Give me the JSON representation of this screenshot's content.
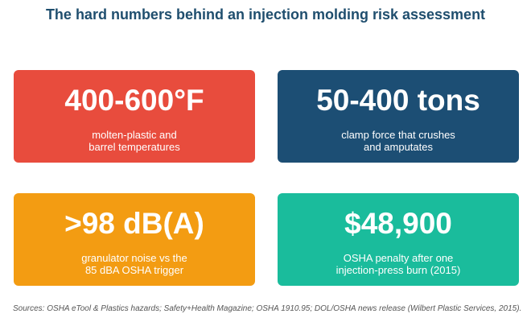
{
  "title": "The hard numbers behind an injection molding risk assessment",
  "cards": [
    {
      "value": "400-600°F",
      "description": "molten-plastic and\nbarrel temperatures",
      "color": "#e84c3d"
    },
    {
      "value": "50-400 tons",
      "description": "clamp force that crushes\nand amputates",
      "color": "#1c4e74"
    },
    {
      "value": ">98 dB(A)",
      "description": "granulator noise vs the\n85 dBA OSHA trigger",
      "color": "#f39c12"
    },
    {
      "value": "$48,900",
      "description": "OSHA penalty after one\ninjection-press burn (2015)",
      "color": "#1abc9c"
    }
  ],
  "sources": "Sources: OSHA eTool & Plastics hazards; Safety+Health Magazine; OSHA 1910.95; DOL/OSHA news release (Wilbert Plastic Services, 2015)."
}
